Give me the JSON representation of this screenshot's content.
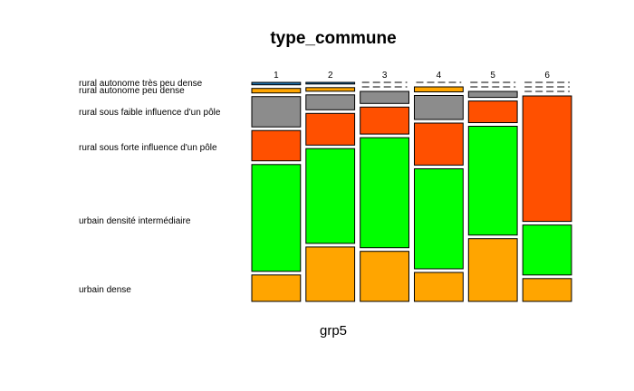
{
  "chart_data": {
    "type": "mosaic",
    "title": "type_commune",
    "xlabel": "grp5",
    "groups": [
      "1",
      "2",
      "3",
      "4",
      "5",
      "6"
    ],
    "group_widths": [
      0.167,
      0.167,
      0.167,
      0.167,
      0.167,
      0.167
    ],
    "categories": [
      "urbain dense",
      "urbain densité intermédiaire",
      "rural sous forte influence d'un pôle",
      "rural sous faible influence d'un pôle",
      "rural autonome peu dense",
      "rural autonome très peu dense"
    ],
    "colors": [
      "#FFA500",
      "#00FF00",
      "#FF5000",
      "#8C8C8C",
      "#FFA500",
      "#1E6EA8"
    ],
    "proportions": [
      [
        0.129,
        0.521,
        0.148,
        0.148,
        0.022,
        0.012
      ],
      [
        0.27,
        0.47,
        0.157,
        0.074,
        0.018,
        0.008
      ],
      [
        0.25,
        0.55,
        0.135,
        0.06,
        0.0,
        0.0
      ],
      [
        0.145,
        0.5,
        0.21,
        0.12,
        0.025,
        0.0
      ],
      [
        0.313,
        0.543,
        0.108,
        0.03,
        0.0,
        0.0
      ],
      [
        0.115,
        0.252,
        0.633,
        0.0,
        0.0,
        0.0
      ]
    ]
  }
}
